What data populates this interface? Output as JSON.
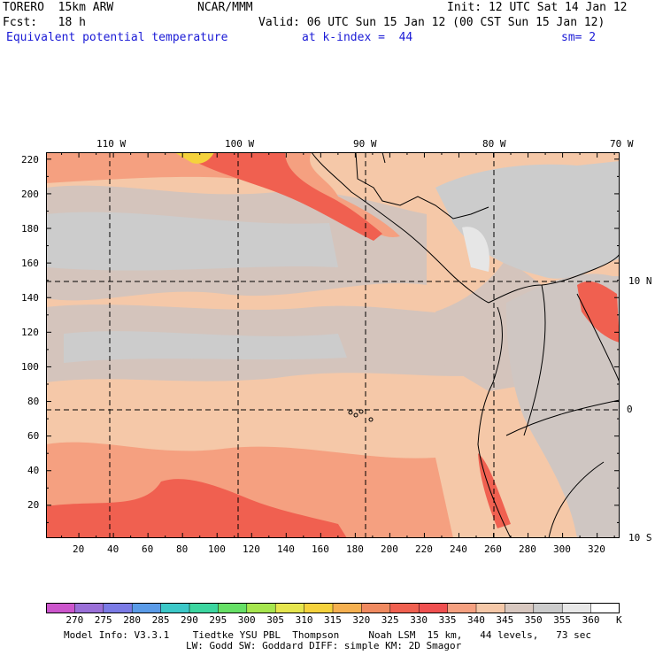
{
  "header": {
    "model": "TORERO  15km ARW",
    "center": "NCAR/MMM",
    "init": "Init: 12 UTC Sat 14 Jan 12",
    "fcst": "Fcst:   18 h",
    "valid": "Valid: 06 UTC Sun 15 Jan 12 (00 CST Sun 15 Jan 12)",
    "field": "Equivalent potential temperature",
    "level": "at k-index =  44",
    "smooth": "sm= 2"
  },
  "map": {
    "top_lon_labels": [
      "110 W",
      "100 W",
      "90 W",
      "80 W",
      "70 W"
    ],
    "right_lat_labels": [
      "10 N",
      "0",
      "10 S"
    ],
    "y_grid_labels": [
      "220",
      "200",
      "180",
      "160",
      "140",
      "120",
      "100",
      "80",
      "60",
      "40",
      "20"
    ],
    "x_grid_labels": [
      "20",
      "40",
      "60",
      "80",
      "100",
      "120",
      "140",
      "160",
      "180",
      "200",
      "220",
      "240",
      "260",
      "280",
      "300",
      "320"
    ],
    "x_range": [
      1,
      333
    ],
    "y_range": [
      1,
      224
    ]
  },
  "colorbar": {
    "unit": "K",
    "labels": [
      "270",
      "275",
      "280",
      "285",
      "290",
      "295",
      "300",
      "305",
      "310",
      "315",
      "320",
      "325",
      "330",
      "335",
      "340",
      "345",
      "350",
      "355",
      "360"
    ],
    "colors": [
      "#cc55cc",
      "#9a6fd8",
      "#7b7be6",
      "#5a9be8",
      "#3cc8c8",
      "#3cd6a0",
      "#66e066",
      "#a6e64e",
      "#e6e64e",
      "#f5d23c",
      "#f5b050",
      "#f08a60",
      "#f06050",
      "#f05050",
      "#f5a080",
      "#f5c8a8",
      "#d8c8c0",
      "#cccccc",
      "#e8e8e8",
      "#ffffff"
    ]
  },
  "footer": {
    "line1": "Model Info: V3.3.1    Tiedtke YSU PBL  Thompson     Noah LSM  15 km,   44 levels,   73 sec",
    "line2": "LW: Godd SW: Goddard DIFF: simple KM: 2D Smagor"
  }
}
